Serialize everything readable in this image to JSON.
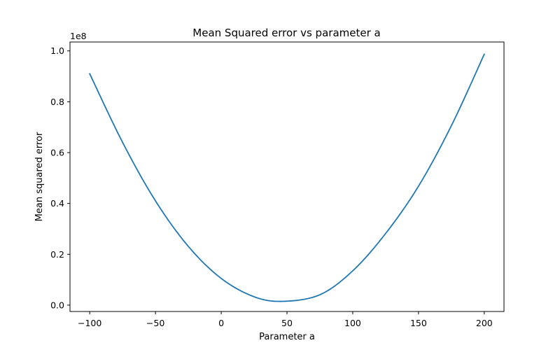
{
  "chart_data": {
    "type": "line",
    "title": "Mean Squared error vs parameter a",
    "xlabel": "Parameter a",
    "ylabel": "Mean squared error",
    "y_offset_label": "1e8",
    "xlim": [
      -115,
      215
    ],
    "ylim": [
      -0.025,
      1.035
    ],
    "y_scale_factor": 100000000,
    "x_ticks": [
      -100,
      -50,
      0,
      50,
      100,
      150,
      200
    ],
    "x_tick_labels": [
      "−100",
      "−50",
      "0",
      "50",
      "100",
      "150",
      "200"
    ],
    "y_ticks": [
      0.0,
      0.2,
      0.4,
      0.6,
      0.8,
      1.0
    ],
    "y_tick_labels": [
      "0.0",
      "0.2",
      "0.4",
      "0.6",
      "0.8",
      "1.0"
    ],
    "grid": false,
    "series": [
      {
        "color": "#1f77b4",
        "x": [
          -100,
          -75,
          -50,
          -25,
          0,
          25,
          47,
          75,
          100,
          125,
          150,
          175,
          200
        ],
        "y": [
          0.91,
          0.64,
          0.41,
          0.231,
          0.105,
          0.033,
          0.015,
          0.041,
          0.135,
          0.282,
          0.468,
          0.706,
          0.987
        ]
      }
    ]
  }
}
